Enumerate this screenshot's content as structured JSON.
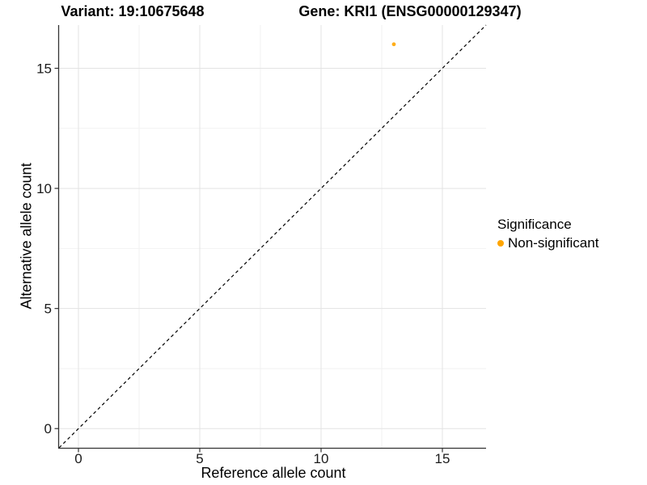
{
  "titles": {
    "variant": "Variant: 19:10675648",
    "gene": "Gene: KRI1 (ENSG00000129347)"
  },
  "legend": {
    "title": "Significance",
    "items": [
      {
        "label": "Non-significant",
        "color": "#FFA500"
      }
    ]
  },
  "chart_data": {
    "type": "scatter",
    "title_left": "Variant: 19:10675648",
    "title_right": "Gene: KRI1 (ENSG00000129347)",
    "xlabel": "Reference allele count",
    "ylabel": "Alternative allele count",
    "xlim": [
      -0.8,
      16.8
    ],
    "ylim": [
      -0.8,
      16.8
    ],
    "x_ticks": [
      0,
      5,
      10,
      15
    ],
    "y_ticks": [
      0,
      5,
      10,
      15
    ],
    "x_minor_ticks": [
      2.5,
      7.5,
      12.5
    ],
    "y_minor_ticks": [
      2.5,
      7.5,
      12.5
    ],
    "grid": true,
    "legend_position": "right",
    "series": [
      {
        "name": "Non-significant",
        "color": "#FFA500",
        "points": [
          {
            "x": 13,
            "y": 16
          }
        ]
      }
    ],
    "reference_line": {
      "type": "abline",
      "slope": 1,
      "intercept": 0,
      "style": "dashed",
      "color": "#000000"
    }
  }
}
